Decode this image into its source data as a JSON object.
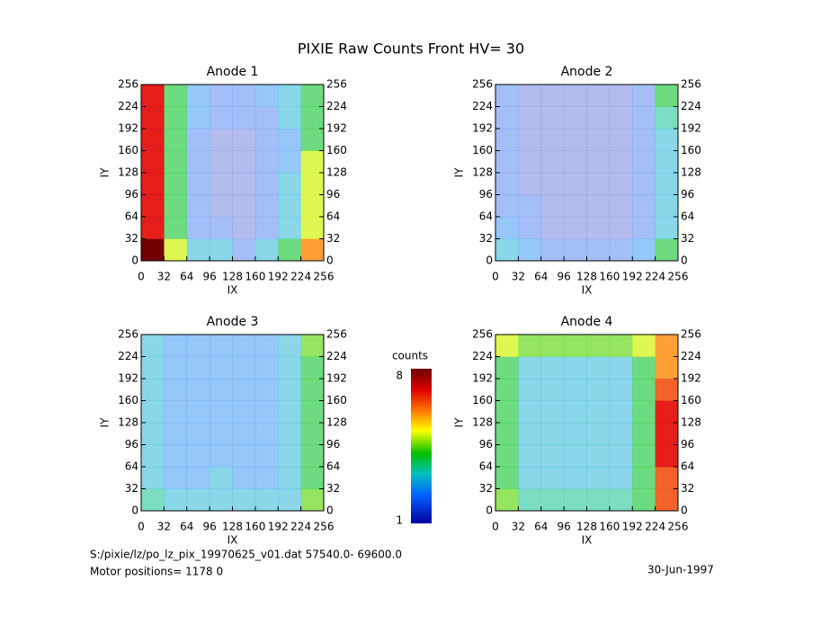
{
  "title": "PIXIE Raw Counts Front HV= 30",
  "colorbar": {
    "label": "counts",
    "zlim": [
      1,
      8
    ],
    "ticks": [
      1,
      8
    ]
  },
  "file": "S:/pixie/lz/po_lz_pix_19970625_v01.dat   57540.0- 69600.0",
  "motor": "Motor positions= 1178 0",
  "date": "30-Jun-1997",
  "chart_data": [
    {
      "type": "heatmap",
      "title": "Anode 1",
      "xlabel": "IX",
      "ylabel": "IY",
      "xlim": [
        0,
        256
      ],
      "ylim": [
        0,
        256
      ],
      "xticks": [
        0,
        32,
        64,
        96,
        128,
        160,
        192,
        224,
        256
      ],
      "yticks": [
        0,
        32,
        64,
        96,
        128,
        160,
        192,
        224,
        256
      ],
      "zlim": [
        1,
        8
      ],
      "z": [
        [
          8,
          5,
          3,
          3,
          2,
          3,
          4,
          6
        ],
        [
          7,
          4,
          2,
          2,
          1.5,
          2,
          3,
          5
        ],
        [
          7,
          4,
          2,
          1.5,
          1.5,
          2,
          3,
          5
        ],
        [
          7,
          4,
          2,
          1.5,
          1.5,
          2,
          3,
          5
        ],
        [
          7,
          4,
          2,
          1.5,
          1.5,
          2,
          2.5,
          5
        ],
        [
          7,
          4,
          2,
          1.5,
          1.5,
          2,
          2.5,
          4
        ],
        [
          7,
          4,
          2.5,
          2,
          2,
          2,
          3,
          4
        ],
        [
          7,
          4,
          2.5,
          2,
          2,
          2.5,
          3,
          4
        ]
      ]
    },
    {
      "type": "heatmap",
      "title": "Anode 2",
      "xlabel": "IX",
      "ylabel": "IY",
      "xlim": [
        0,
        256
      ],
      "ylim": [
        0,
        256
      ],
      "xticks": [
        0,
        32,
        64,
        96,
        128,
        160,
        192,
        224,
        256
      ],
      "yticks": [
        0,
        32,
        64,
        96,
        128,
        160,
        192,
        224,
        256
      ],
      "zlim": [
        1,
        8
      ],
      "z": [
        [
          3,
          2.5,
          2,
          2,
          2,
          2,
          2.5,
          4
        ],
        [
          2.5,
          2,
          1.5,
          1.5,
          1.5,
          1.5,
          2,
          3
        ],
        [
          2,
          2,
          1.5,
          1.5,
          1.5,
          1.5,
          2,
          3
        ],
        [
          2,
          1.5,
          1.5,
          1.5,
          1.5,
          1.5,
          2,
          3
        ],
        [
          2,
          1.5,
          1.5,
          1.5,
          1.5,
          1.5,
          2,
          3
        ],
        [
          2,
          1.5,
          1.5,
          1.5,
          1.5,
          1.5,
          2,
          3
        ],
        [
          2,
          1.5,
          1.5,
          1.5,
          1.5,
          1.5,
          2,
          3.5
        ],
        [
          2,
          1.5,
          1.5,
          1.5,
          1.5,
          1.5,
          2,
          4
        ]
      ]
    },
    {
      "type": "heatmap",
      "title": "Anode 3",
      "xlabel": "IX",
      "ylabel": "IY",
      "xlim": [
        0,
        256
      ],
      "ylim": [
        0,
        256
      ],
      "xticks": [
        0,
        32,
        64,
        96,
        128,
        160,
        192,
        224,
        256
      ],
      "yticks": [
        0,
        32,
        64,
        96,
        128,
        160,
        192,
        224,
        256
      ],
      "zlim": [
        1,
        8
      ],
      "z": [
        [
          3.5,
          3,
          3,
          3,
          3,
          3,
          3,
          4.5
        ],
        [
          3,
          2.5,
          2.5,
          3,
          2.5,
          2.5,
          3,
          4
        ],
        [
          3,
          2.5,
          2.5,
          2.5,
          2.5,
          2.5,
          3,
          4
        ],
        [
          3,
          2.5,
          2.5,
          2.5,
          2.5,
          2.5,
          3,
          4
        ],
        [
          3,
          2.5,
          2.5,
          2.5,
          2.5,
          2.5,
          3,
          4
        ],
        [
          3,
          2.5,
          2.5,
          2.5,
          2.5,
          2.5,
          3,
          4
        ],
        [
          3,
          2.5,
          2.5,
          2.5,
          2.5,
          2.5,
          3,
          4
        ],
        [
          3,
          2.5,
          2.5,
          2.5,
          2.5,
          2.5,
          3,
          4.5
        ]
      ]
    },
    {
      "type": "heatmap",
      "title": "Anode 4",
      "xlabel": "IX",
      "ylabel": "IY",
      "xlim": [
        0,
        256
      ],
      "ylim": [
        0,
        256
      ],
      "xticks": [
        0,
        32,
        64,
        96,
        128,
        160,
        192,
        224,
        256
      ],
      "yticks": [
        0,
        32,
        64,
        96,
        128,
        160,
        192,
        224,
        256
      ],
      "zlim": [
        1,
        8
      ],
      "z": [
        [
          4.5,
          3.5,
          3.5,
          3.5,
          3.5,
          3.5,
          4,
          6.5
        ],
        [
          4,
          3,
          3,
          3,
          3,
          3,
          4,
          6.5
        ],
        [
          4,
          3,
          3,
          3,
          3,
          3,
          4,
          7
        ],
        [
          4,
          3,
          3,
          3,
          3,
          3,
          4,
          7
        ],
        [
          4,
          3,
          3,
          3,
          3,
          3,
          4,
          7
        ],
        [
          4,
          3,
          3,
          3,
          3,
          3,
          4,
          6.5
        ],
        [
          4,
          3,
          3,
          3,
          3,
          3,
          4,
          6
        ],
        [
          5,
          4.5,
          4.5,
          4.5,
          4.5,
          4.5,
          5,
          6
        ]
      ]
    }
  ]
}
